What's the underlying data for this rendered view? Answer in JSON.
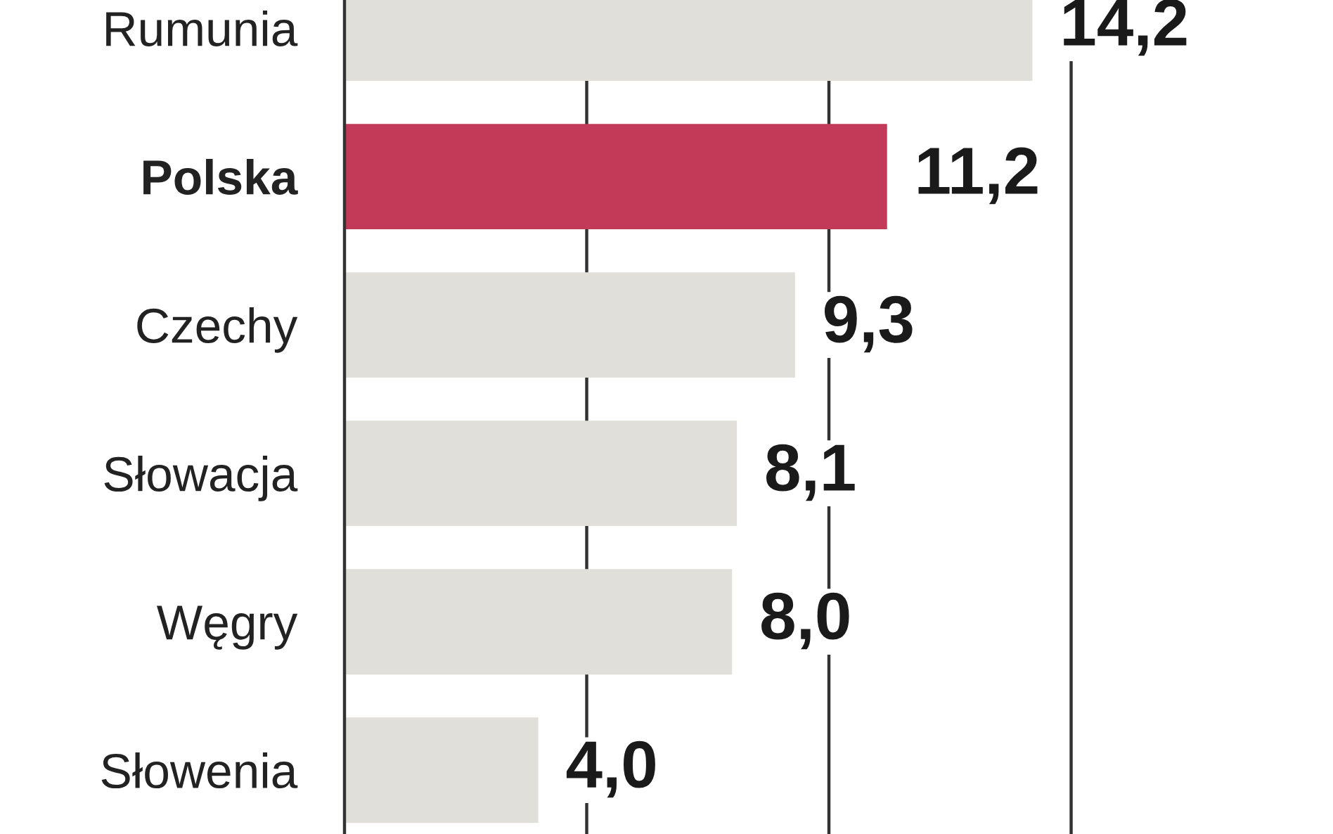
{
  "chart_data": {
    "type": "bar",
    "orientation": "horizontal",
    "categories": [
      "Rumunia",
      "Polska",
      "Czechy",
      "Słowacja",
      "Węgry",
      "Słowenia"
    ],
    "values": [
      14.2,
      11.2,
      9.3,
      8.1,
      8.0,
      4.0
    ],
    "value_labels": [
      "14,2",
      "11,2",
      "9,3",
      "8,1",
      "8,0",
      "4,0"
    ],
    "colors": [
      "#e1dfd9",
      "#c23a58",
      "#e1dfd9",
      "#e1dfd9",
      "#e1dfd9",
      "#e1dfd9"
    ],
    "ref_lines": [
      {
        "axis": "x",
        "value": 5,
        "color": "#333333"
      },
      {
        "axis": "x",
        "value": 10,
        "color": "#333333"
      },
      {
        "axis": "x",
        "value": 15,
        "color": "#333333"
      }
    ],
    "tick_labels": "y",
    "legend": false
  }
}
